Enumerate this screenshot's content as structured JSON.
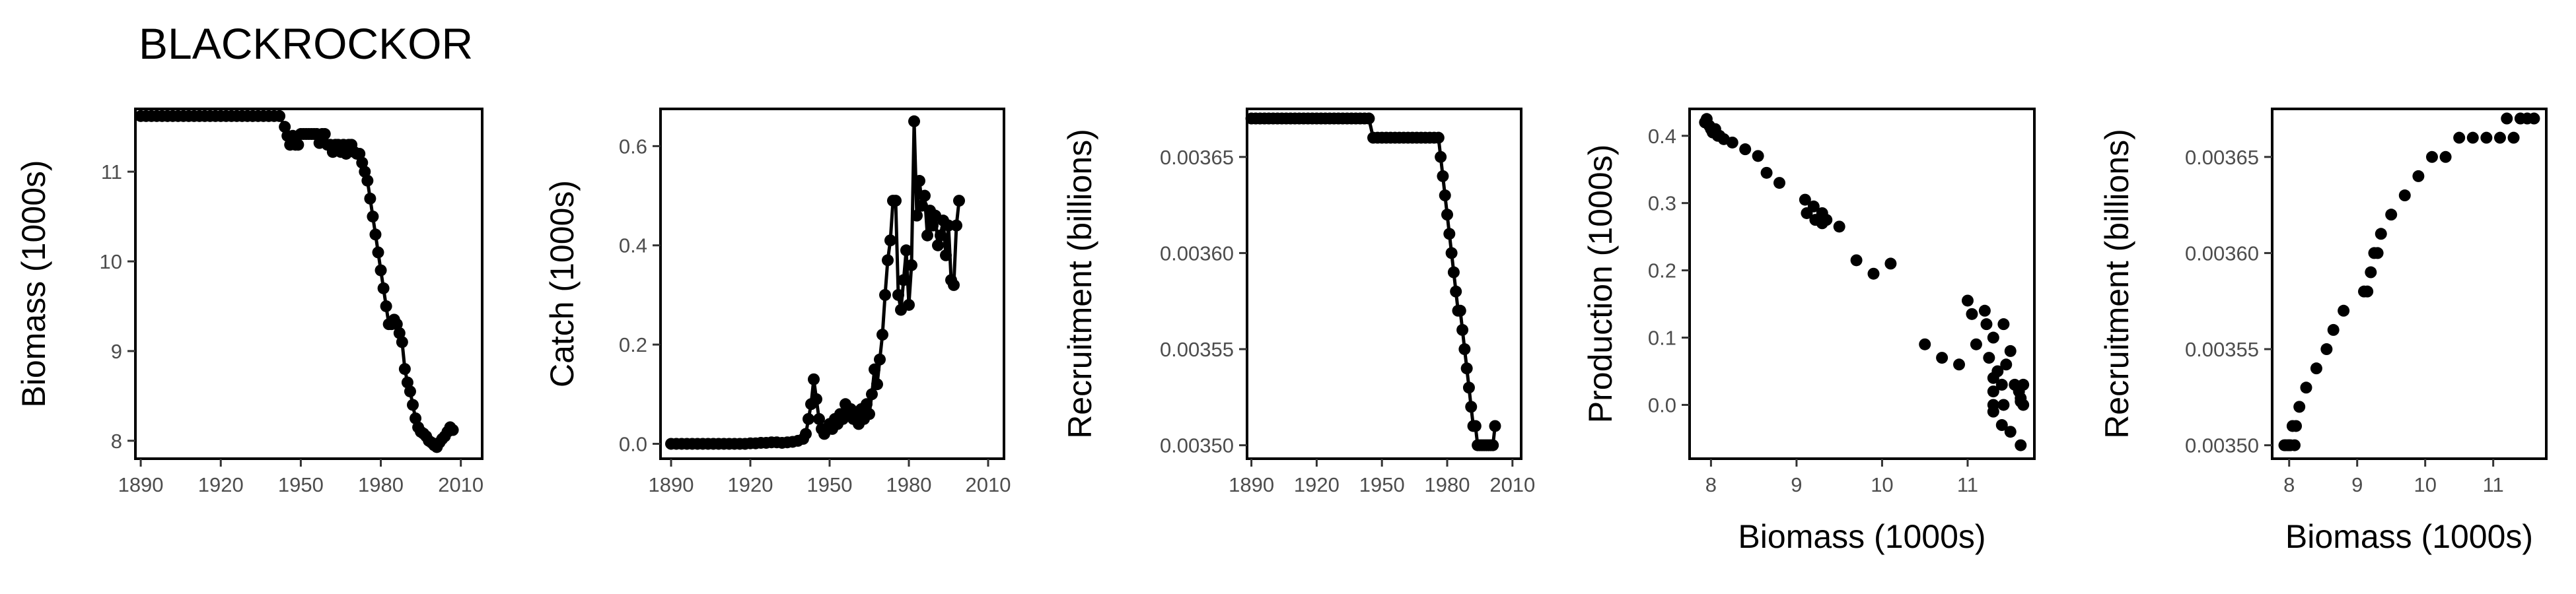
{
  "title": "BLACKROCKOR",
  "chart_data": [
    {
      "type": "line",
      "ylabel": "Biomass (1000s)",
      "xlabel": "",
      "xlim": [
        1888,
        2018
      ],
      "ylim": [
        7.8,
        11.7
      ],
      "xticks": [
        "1890",
        "1920",
        "1950",
        "1980",
        "2010"
      ],
      "yticks": [
        "8",
        "9",
        "10",
        "11"
      ],
      "points": [
        [
          1890,
          11.62
        ],
        [
          1892,
          11.62
        ],
        [
          1894,
          11.62
        ],
        [
          1896,
          11.62
        ],
        [
          1898,
          11.62
        ],
        [
          1900,
          11.62
        ],
        [
          1902,
          11.62
        ],
        [
          1904,
          11.62
        ],
        [
          1906,
          11.62
        ],
        [
          1908,
          11.62
        ],
        [
          1910,
          11.62
        ],
        [
          1912,
          11.62
        ],
        [
          1914,
          11.62
        ],
        [
          1916,
          11.62
        ],
        [
          1918,
          11.62
        ],
        [
          1920,
          11.62
        ],
        [
          1922,
          11.62
        ],
        [
          1924,
          11.62
        ],
        [
          1926,
          11.62
        ],
        [
          1928,
          11.62
        ],
        [
          1930,
          11.62
        ],
        [
          1932,
          11.62
        ],
        [
          1934,
          11.62
        ],
        [
          1936,
          11.62
        ],
        [
          1938,
          11.62
        ],
        [
          1940,
          11.62
        ],
        [
          1942,
          11.62
        ],
        [
          1944,
          11.5
        ],
        [
          1945,
          11.4
        ],
        [
          1946,
          11.3
        ],
        [
          1947,
          11.4
        ],
        [
          1948,
          11.3
        ],
        [
          1949,
          11.3
        ],
        [
          1950,
          11.42
        ],
        [
          1951,
          11.42
        ],
        [
          1952,
          11.42
        ],
        [
          1953,
          11.42
        ],
        [
          1954,
          11.42
        ],
        [
          1955,
          11.42
        ],
        [
          1956,
          11.42
        ],
        [
          1957,
          11.32
        ],
        [
          1958,
          11.42
        ],
        [
          1959,
          11.42
        ],
        [
          1960,
          11.3
        ],
        [
          1961,
          11.3
        ],
        [
          1962,
          11.22
        ],
        [
          1963,
          11.3
        ],
        [
          1964,
          11.3
        ],
        [
          1965,
          11.22
        ],
        [
          1966,
          11.3
        ],
        [
          1967,
          11.2
        ],
        [
          1968,
          11.3
        ],
        [
          1969,
          11.3
        ],
        [
          1970,
          11.22
        ],
        [
          1971,
          11.2
        ],
        [
          1972,
          11.2
        ],
        [
          1973,
          11.1
        ],
        [
          1974,
          11.0
        ],
        [
          1975,
          10.9
        ],
        [
          1976,
          10.7
        ],
        [
          1977,
          10.5
        ],
        [
          1978,
          10.3
        ],
        [
          1979,
          10.1
        ],
        [
          1980,
          9.9
        ],
        [
          1981,
          9.7
        ],
        [
          1982,
          9.5
        ],
        [
          1983,
          9.3
        ],
        [
          1984,
          9.3
        ],
        [
          1985,
          9.35
        ],
        [
          1986,
          9.3
        ],
        [
          1987,
          9.2
        ],
        [
          1988,
          9.1
        ],
        [
          1989,
          8.8
        ],
        [
          1990,
          8.65
        ],
        [
          1991,
          8.55
        ],
        [
          1992,
          8.4
        ],
        [
          1993,
          8.25
        ],
        [
          1994,
          8.15
        ],
        [
          1995,
          8.1
        ],
        [
          1996,
          8.08
        ],
        [
          1997,
          8.05
        ],
        [
          1998,
          8.0
        ],
        [
          1999,
          7.98
        ],
        [
          2000,
          7.95
        ],
        [
          2001,
          7.93
        ],
        [
          2002,
          7.98
        ],
        [
          2003,
          8.02
        ],
        [
          2004,
          8.05
        ],
        [
          2005,
          8.1
        ],
        [
          2006,
          8.15
        ],
        [
          2007,
          8.12
        ]
      ]
    },
    {
      "type": "line",
      "ylabel": "Catch (1000s)",
      "xlabel": "",
      "xlim": [
        1886,
        2016
      ],
      "ylim": [
        -0.03,
        0.675
      ],
      "xticks": [
        "1890",
        "1920",
        "1950",
        "1980",
        "2010"
      ],
      "yticks": [
        "0.0",
        "0.2",
        "0.4",
        "0.6"
      ],
      "points": [
        [
          1890,
          0
        ],
        [
          1892,
          0
        ],
        [
          1894,
          0
        ],
        [
          1896,
          0
        ],
        [
          1898,
          0
        ],
        [
          1900,
          0
        ],
        [
          1902,
          0
        ],
        [
          1904,
          0
        ],
        [
          1906,
          0
        ],
        [
          1908,
          0
        ],
        [
          1910,
          0
        ],
        [
          1912,
          0
        ],
        [
          1914,
          0
        ],
        [
          1916,
          0
        ],
        [
          1918,
          0
        ],
        [
          1920,
          0.001
        ],
        [
          1922,
          0.001
        ],
        [
          1924,
          0.002
        ],
        [
          1926,
          0.002
        ],
        [
          1928,
          0.003
        ],
        [
          1930,
          0.003
        ],
        [
          1932,
          0.002
        ],
        [
          1934,
          0.003
        ],
        [
          1936,
          0.004
        ],
        [
          1938,
          0.006
        ],
        [
          1940,
          0.01
        ],
        [
          1941,
          0.02
        ],
        [
          1942,
          0.05
        ],
        [
          1943,
          0.08
        ],
        [
          1944,
          0.13
        ],
        [
          1945,
          0.09
        ],
        [
          1946,
          0.05
        ],
        [
          1947,
          0.03
        ],
        [
          1948,
          0.02
        ],
        [
          1949,
          0.03
        ],
        [
          1950,
          0.04
        ],
        [
          1951,
          0.03
        ],
        [
          1952,
          0.05
        ],
        [
          1953,
          0.04
        ],
        [
          1954,
          0.06
        ],
        [
          1955,
          0.05
        ],
        [
          1956,
          0.08
        ],
        [
          1957,
          0.06
        ],
        [
          1958,
          0.07
        ],
        [
          1959,
          0.05
        ],
        [
          1960,
          0.06
        ],
        [
          1961,
          0.04
        ],
        [
          1962,
          0.07
        ],
        [
          1963,
          0.05
        ],
        [
          1964,
          0.08
        ],
        [
          1965,
          0.06
        ],
        [
          1966,
          0.1
        ],
        [
          1967,
          0.15
        ],
        [
          1968,
          0.12
        ],
        [
          1969,
          0.17
        ],
        [
          1970,
          0.22
        ],
        [
          1971,
          0.3
        ],
        [
          1972,
          0.37
        ],
        [
          1973,
          0.41
        ],
        [
          1974,
          0.49
        ],
        [
          1975,
          0.49
        ],
        [
          1976,
          0.3
        ],
        [
          1977,
          0.27
        ],
        [
          1978,
          0.33
        ],
        [
          1979,
          0.39
        ],
        [
          1980,
          0.28
        ],
        [
          1981,
          0.36
        ],
        [
          1982,
          0.65
        ],
        [
          1983,
          0.46
        ],
        [
          1984,
          0.53
        ],
        [
          1985,
          0.48
        ],
        [
          1986,
          0.5
        ],
        [
          1987,
          0.42
        ],
        [
          1988,
          0.47
        ],
        [
          1989,
          0.44
        ],
        [
          1990,
          0.46
        ],
        [
          1991,
          0.4
        ],
        [
          1992,
          0.42
        ],
        [
          1993,
          0.45
        ],
        [
          1994,
          0.38
        ],
        [
          1995,
          0.44
        ],
        [
          1996,
          0.33
        ],
        [
          1997,
          0.32
        ],
        [
          1998,
          0.44
        ],
        [
          1999,
          0.49
        ]
      ]
    },
    {
      "type": "line",
      "ylabel": "Recruitment (billions)",
      "xlabel": "",
      "xlim": [
        1888,
        2014
      ],
      "ylim": [
        0.003493,
        0.003675
      ],
      "xticks": [
        "1890",
        "1920",
        "1950",
        "1980",
        "2010"
      ],
      "yticks": [
        "0.00350",
        "0.00355",
        "0.00360",
        "0.00365"
      ],
      "points": [
        [
          1890,
          0.00367
        ],
        [
          1892,
          0.00367
        ],
        [
          1894,
          0.00367
        ],
        [
          1896,
          0.00367
        ],
        [
          1898,
          0.00367
        ],
        [
          1900,
          0.00367
        ],
        [
          1902,
          0.00367
        ],
        [
          1904,
          0.00367
        ],
        [
          1906,
          0.00367
        ],
        [
          1908,
          0.00367
        ],
        [
          1910,
          0.00367
        ],
        [
          1912,
          0.00367
        ],
        [
          1914,
          0.00367
        ],
        [
          1916,
          0.00367
        ],
        [
          1918,
          0.00367
        ],
        [
          1920,
          0.00367
        ],
        [
          1922,
          0.00367
        ],
        [
          1924,
          0.00367
        ],
        [
          1926,
          0.00367
        ],
        [
          1928,
          0.00367
        ],
        [
          1930,
          0.00367
        ],
        [
          1932,
          0.00367
        ],
        [
          1934,
          0.00367
        ],
        [
          1936,
          0.00367
        ],
        [
          1938,
          0.00367
        ],
        [
          1940,
          0.00367
        ],
        [
          1942,
          0.00367
        ],
        [
          1944,
          0.00367
        ],
        [
          1946,
          0.00366
        ],
        [
          1948,
          0.00366
        ],
        [
          1950,
          0.00366
        ],
        [
          1952,
          0.00366
        ],
        [
          1954,
          0.00366
        ],
        [
          1956,
          0.00366
        ],
        [
          1958,
          0.00366
        ],
        [
          1960,
          0.00366
        ],
        [
          1962,
          0.00366
        ],
        [
          1964,
          0.00366
        ],
        [
          1966,
          0.00366
        ],
        [
          1968,
          0.00366
        ],
        [
          1970,
          0.00366
        ],
        [
          1972,
          0.00366
        ],
        [
          1974,
          0.00366
        ],
        [
          1976,
          0.00366
        ],
        [
          1977,
          0.00365
        ],
        [
          1978,
          0.00364
        ],
        [
          1979,
          0.00363
        ],
        [
          1980,
          0.00362
        ],
        [
          1981,
          0.00361
        ],
        [
          1982,
          0.0036
        ],
        [
          1983,
          0.00359
        ],
        [
          1984,
          0.00358
        ],
        [
          1985,
          0.00357
        ],
        [
          1986,
          0.00357
        ],
        [
          1987,
          0.00356
        ],
        [
          1988,
          0.00355
        ],
        [
          1989,
          0.00354
        ],
        [
          1990,
          0.00353
        ],
        [
          1991,
          0.00352
        ],
        [
          1992,
          0.00351
        ],
        [
          1993,
          0.00351
        ],
        [
          1994,
          0.0035
        ],
        [
          1995,
          0.0035
        ],
        [
          1996,
          0.0035
        ],
        [
          1997,
          0.0035
        ],
        [
          1998,
          0.0035
        ],
        [
          1999,
          0.0035
        ],
        [
          2000,
          0.0035
        ],
        [
          2001,
          0.0035
        ],
        [
          2002,
          0.00351
        ]
      ]
    },
    {
      "type": "scatter",
      "ylabel": "Production (1000s)",
      "xlabel": "Biomass (1000s)",
      "xlim": [
        7.75,
        11.78
      ],
      "ylim": [
        -0.08,
        0.44
      ],
      "xticks": [
        "8",
        "9",
        "10",
        "11"
      ],
      "yticks": [
        "0.0",
        "0.1",
        "0.2",
        "0.3",
        "0.4"
      ],
      "points": [
        [
          7.93,
          0.42
        ],
        [
          7.95,
          0.425
        ],
        [
          7.98,
          0.415
        ],
        [
          8.0,
          0.41
        ],
        [
          8.02,
          0.405
        ],
        [
          8.05,
          0.41
        ],
        [
          8.08,
          0.4
        ],
        [
          8.1,
          0.4
        ],
        [
          8.15,
          0.395
        ],
        [
          8.25,
          0.39
        ],
        [
          8.4,
          0.38
        ],
        [
          8.55,
          0.37
        ],
        [
          8.65,
          0.345
        ],
        [
          8.8,
          0.33
        ],
        [
          9.1,
          0.305
        ],
        [
          9.12,
          0.285
        ],
        [
          9.2,
          0.295
        ],
        [
          9.22,
          0.275
        ],
        [
          9.3,
          0.285
        ],
        [
          9.3,
          0.27
        ],
        [
          9.35,
          0.275
        ],
        [
          9.5,
          0.265
        ],
        [
          9.7,
          0.215
        ],
        [
          9.9,
          0.195
        ],
        [
          10.1,
          0.21
        ],
        [
          10.5,
          0.09
        ],
        [
          10.7,
          0.07
        ],
        [
          10.9,
          0.06
        ],
        [
          11.0,
          0.155
        ],
        [
          11.05,
          0.135
        ],
        [
          11.1,
          0.09
        ],
        [
          11.2,
          0.14
        ],
        [
          11.22,
          0.12
        ],
        [
          11.25,
          0.07
        ],
        [
          11.3,
          0.04
        ],
        [
          11.3,
          0.02
        ],
        [
          11.3,
          0.0
        ],
        [
          11.3,
          -0.01
        ],
        [
          11.35,
          0.05
        ],
        [
          11.4,
          0.03
        ],
        [
          11.42,
          0.0
        ],
        [
          11.42,
          0.12
        ],
        [
          11.5,
          0.08
        ],
        [
          11.5,
          -0.04
        ],
        [
          11.55,
          0.03
        ],
        [
          11.6,
          0.02
        ],
        [
          11.62,
          0.01
        ],
        [
          11.62,
          -0.06
        ],
        [
          11.62,
          0.005
        ],
        [
          11.65,
          0.0
        ],
        [
          11.65,
          0.03
        ],
        [
          11.3,
          0.1
        ],
        [
          11.4,
          -0.03
        ],
        [
          11.45,
          0.06
        ]
      ]
    },
    {
      "type": "scatter",
      "ylabel": "Recruitment (billions)",
      "xlabel": "Biomass (1000s)",
      "xlim": [
        7.75,
        11.78
      ],
      "ylim": [
        0.003493,
        0.003675
      ],
      "xticks": [
        "8",
        "9",
        "10",
        "11"
      ],
      "yticks": [
        "0.00350",
        "0.00355",
        "0.00360",
        "0.00365"
      ],
      "points": [
        [
          7.93,
          0.0035
        ],
        [
          7.95,
          0.0035
        ],
        [
          7.98,
          0.0035
        ],
        [
          8.0,
          0.0035
        ],
        [
          8.02,
          0.0035
        ],
        [
          8.05,
          0.00351
        ],
        [
          8.08,
          0.0035
        ],
        [
          8.1,
          0.00351
        ],
        [
          8.15,
          0.00352
        ],
        [
          8.25,
          0.00353
        ],
        [
          8.4,
          0.00354
        ],
        [
          8.55,
          0.00355
        ],
        [
          8.65,
          0.00356
        ],
        [
          8.8,
          0.00357
        ],
        [
          9.1,
          0.00358
        ],
        [
          9.15,
          0.00358
        ],
        [
          9.2,
          0.00359
        ],
        [
          9.25,
          0.0036
        ],
        [
          9.3,
          0.0036
        ],
        [
          9.35,
          0.00361
        ],
        [
          9.5,
          0.00362
        ],
        [
          9.7,
          0.00363
        ],
        [
          9.9,
          0.00364
        ],
        [
          10.1,
          0.00365
        ],
        [
          10.3,
          0.00365
        ],
        [
          10.5,
          0.00366
        ],
        [
          10.7,
          0.00366
        ],
        [
          10.9,
          0.00366
        ],
        [
          11.1,
          0.00366
        ],
        [
          11.2,
          0.00367
        ],
        [
          11.3,
          0.00366
        ],
        [
          11.4,
          0.00367
        ],
        [
          11.5,
          0.00367
        ],
        [
          11.6,
          0.00367
        ]
      ]
    }
  ]
}
